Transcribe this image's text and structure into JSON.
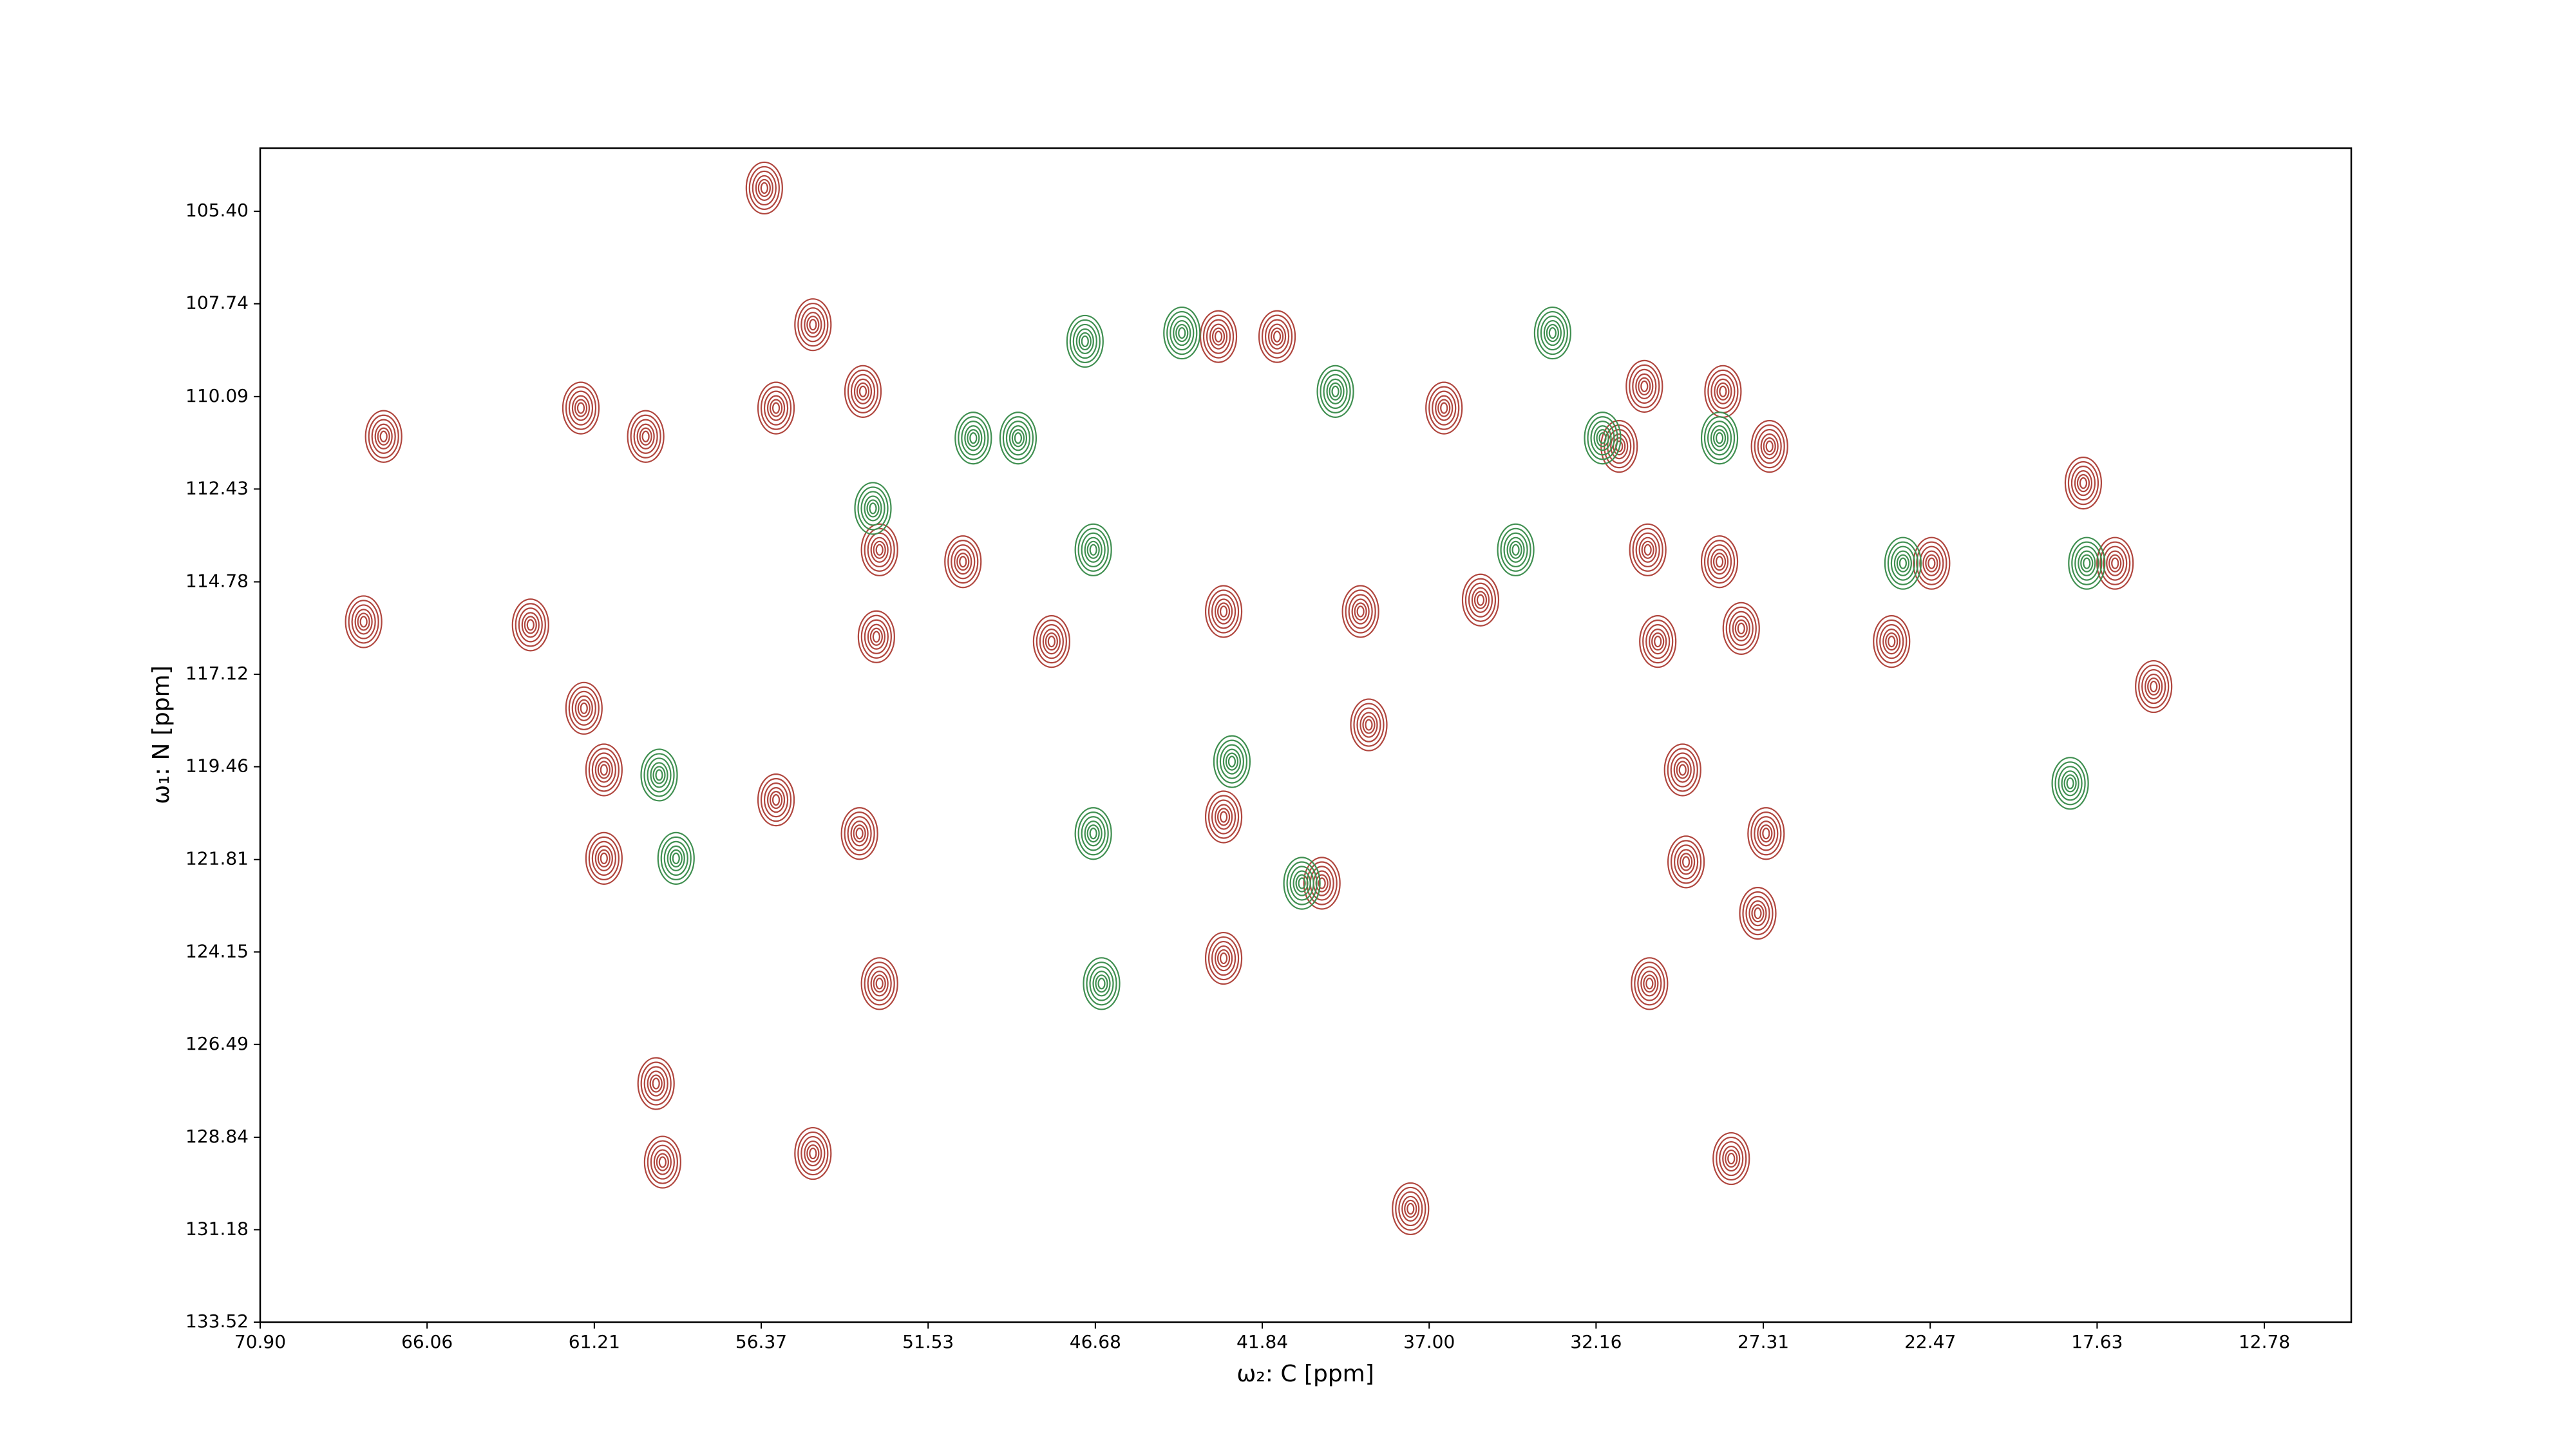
{
  "chart_data": {
    "type": "contour",
    "xlabel": "ω₂: C [ppm]",
    "ylabel": "ω₁: N [ppm]",
    "xlim": [
      70.9,
      10.26
    ],
    "ylim": [
      133.52,
      103.8
    ],
    "xticks": [
      {
        "value": 70.9,
        "label": "70.90"
      },
      66.06,
      61.21,
      56.37,
      51.53,
      46.68,
      41.84,
      {
        "value": 37.0,
        "label": "37.00"
      },
      32.16,
      27.31,
      22.47,
      17.63,
      12.78
    ],
    "yticks": [
      {
        "value": 105.4,
        "label": "105.40"
      },
      107.74,
      110.09,
      112.43,
      114.78,
      117.12,
      119.46,
      121.81,
      124.15,
      126.49,
      128.84,
      131.18,
      133.52
    ],
    "series": [
      {
        "color": "#b0463e",
        "x": [
          67.32,
          61.6,
          59.72,
          55.94,
          53.42,
          54.87,
          56.28,
          52.94,
          50.52,
          53.03,
          43.11,
          41.41,
          42.96,
          38.99,
          42.96,
          42.96,
          36.57,
          30.76,
          28.48,
          27.13,
          31.49,
          30.66,
          28.58,
          30.37,
          27.95,
          29.65,
          27.23,
          27.47,
          29.55,
          30.61,
          22.43,
          17.11,
          18.03,
          15.99,
          23.59,
          67.9,
          63.06,
          60.93,
          60.93,
          61.51,
          55.94,
          53.52,
          52.94,
          40.11,
          37.54,
          54.87,
          59.23,
          59.42,
          28.24,
          47.95,
          38.75,
          35.51
        ],
        "y": [
          111.1,
          110.38,
          111.1,
          110.38,
          109.96,
          108.27,
          104.81,
          113.97,
          114.27,
          116.17,
          108.57,
          108.57,
          115.53,
          115.53,
          120.73,
          124.31,
          110.38,
          109.83,
          109.96,
          111.35,
          111.35,
          113.97,
          114.27,
          116.29,
          115.96,
          119.54,
          121.15,
          123.17,
          121.87,
          124.95,
          114.31,
          114.31,
          112.28,
          117.43,
          116.29,
          115.79,
          115.87,
          119.54,
          121.78,
          117.98,
          120.3,
          121.15,
          124.95,
          122.41,
          130.65,
          129.25,
          129.47,
          127.48,
          129.38,
          116.29,
          118.4,
          115.24
        ]
      },
      {
        "color": "#3f8f50",
        "x": [
          50.22,
          48.92,
          53.13,
          46.74,
          44.17,
          33.42,
          31.97,
          28.58,
          46.74,
          46.5,
          58.84,
          59.33,
          46.98,
          39.72,
          42.72,
          40.69,
          18.41,
          23.26,
          17.93,
          34.49
        ],
        "y": [
          111.14,
          111.14,
          112.92,
          113.97,
          108.48,
          108.48,
          111.14,
          111.14,
          121.15,
          124.95,
          121.78,
          119.67,
          108.69,
          109.96,
          119.33,
          122.41,
          119.88,
          114.31,
          114.31,
          113.97
        ]
      }
    ]
  }
}
